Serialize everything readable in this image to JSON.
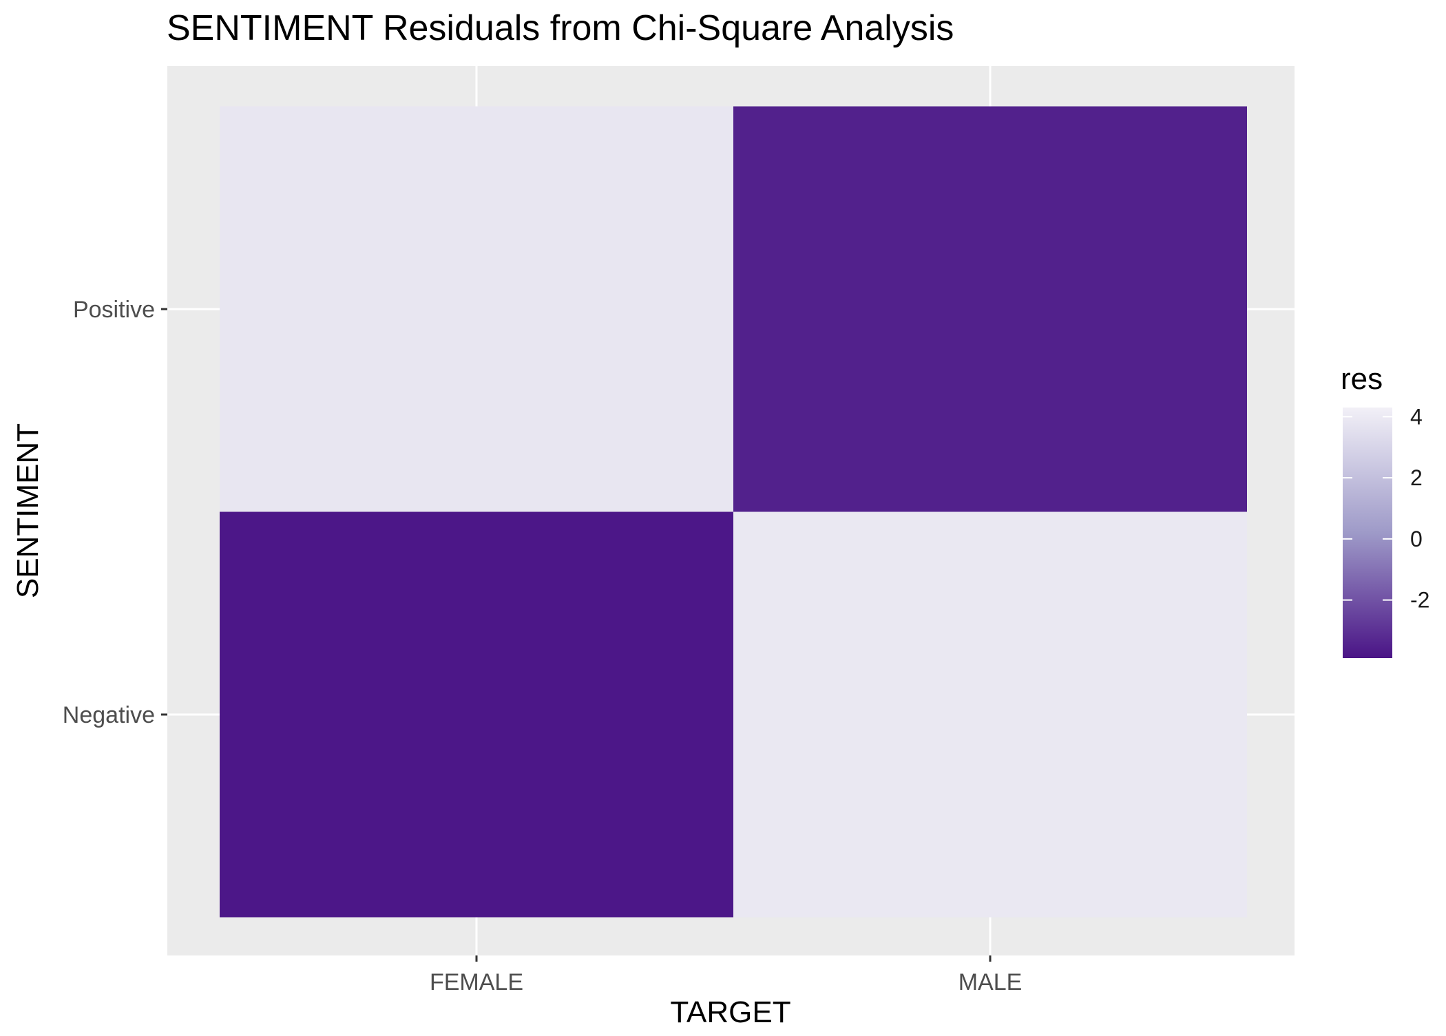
{
  "chart_data": {
    "type": "heatmap",
    "title": "SENTIMENT Residuals from Chi-Square Analysis",
    "xlabel": "TARGET",
    "ylabel": "SENTIMENT",
    "x_categories": [
      "FEMALE",
      "MALE"
    ],
    "y_categories": [
      "Negative",
      "Positive"
    ],
    "cells": [
      {
        "x": "FEMALE",
        "y": "Positive",
        "value": 3.8
      },
      {
        "x": "MALE",
        "y": "Positive",
        "value": -3.5
      },
      {
        "x": "FEMALE",
        "y": "Negative",
        "value": -3.8
      },
      {
        "x": "MALE",
        "y": "Negative",
        "value": 3.9
      }
    ],
    "legend": {
      "title": "res",
      "breaks": [
        4,
        2,
        0,
        -2
      ],
      "break_labels": [
        "4",
        "2",
        "0",
        "-2"
      ],
      "range": [
        -3.9,
        4.3
      ],
      "color_low": "#4a1486",
      "color_high": "#f2f0f7"
    },
    "panel_background": "#ebebeb",
    "grid": true,
    "legend_position": "right"
  }
}
